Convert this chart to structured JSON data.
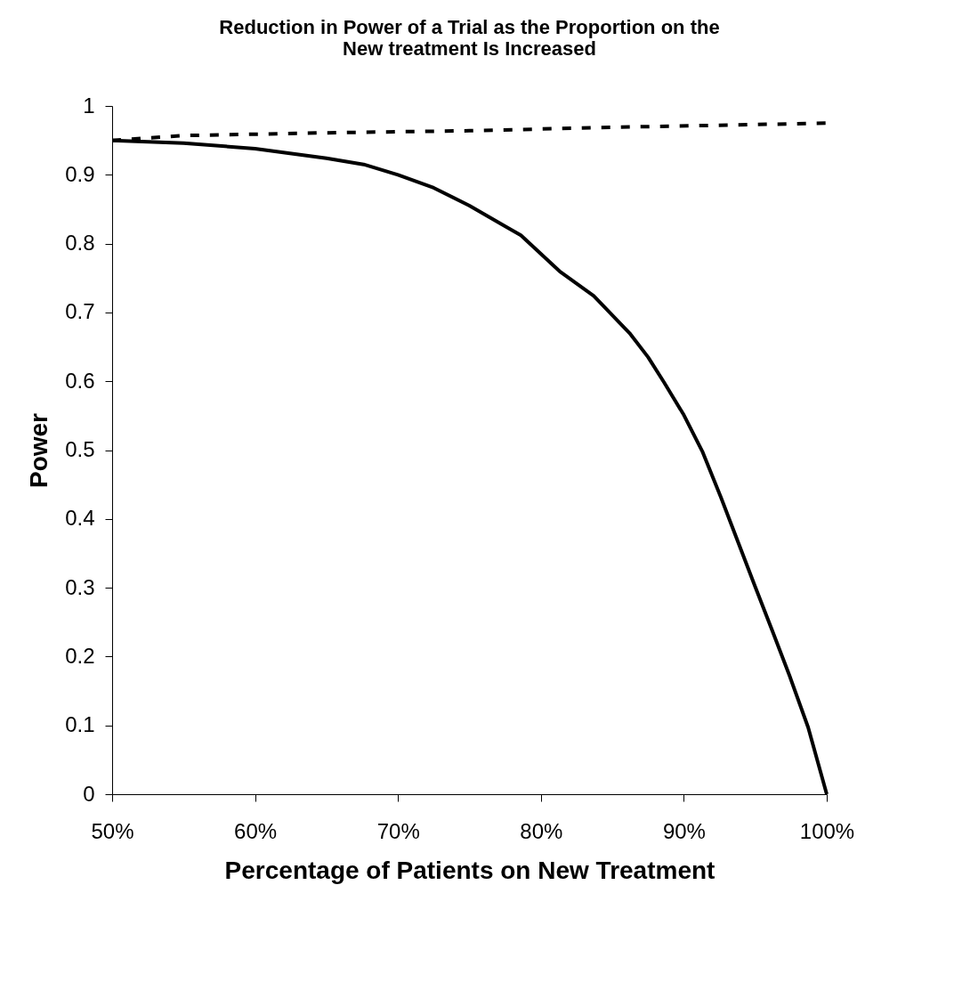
{
  "chart_data": {
    "type": "line",
    "title": [
      "Reduction in Power of a Trial as the Proportion on the",
      "New treatment Is Increased"
    ],
    "xlabel": "Percentage of Patients on New Treatment",
    "ylabel": "Power",
    "xlim": [
      50,
      100
    ],
    "xticks": [
      {
        "value": 50,
        "label": "50%"
      },
      {
        "value": 60,
        "label": "60%"
      },
      {
        "value": 70,
        "label": "70%"
      },
      {
        "value": 80,
        "label": "80%"
      },
      {
        "value": 90,
        "label": "90%"
      },
      {
        "value": 100,
        "label": "100%"
      }
    ],
    "ylim": [
      0,
      1
    ],
    "yticks": [
      0,
      0.1,
      0.2,
      0.3,
      0.4,
      0.5,
      0.6,
      0.7,
      0.8,
      0.9,
      1
    ],
    "grid": false,
    "legend": false,
    "marker": "none",
    "series": [
      {
        "color": "#000000",
        "line_style": "solid",
        "x": [
          50,
          55,
          60,
          65,
          67.6,
          70,
          72.5,
          75,
          78.6,
          81.3,
          83.7,
          86.2,
          87.5,
          88.6,
          90,
          91.3,
          92.6,
          93.8,
          95,
          96.2,
          97.4,
          98.7,
          100
        ],
        "values": [
          0.95,
          0.946,
          0.938,
          0.924,
          0.915,
          0.9,
          0.881,
          0.855,
          0.812,
          0.76,
          0.724,
          0.67,
          0.635,
          0.599,
          0.551,
          0.498,
          0.431,
          0.366,
          0.301,
          0.237,
          0.172,
          0.097,
          0
        ]
      },
      {
        "color": "#000000",
        "line_style": "dashed",
        "x": [
          50,
          55,
          65,
          75,
          85,
          100
        ],
        "values": [
          0.95,
          0.957,
          0.961,
          0.964,
          0.969,
          0.975
        ]
      }
    ]
  }
}
